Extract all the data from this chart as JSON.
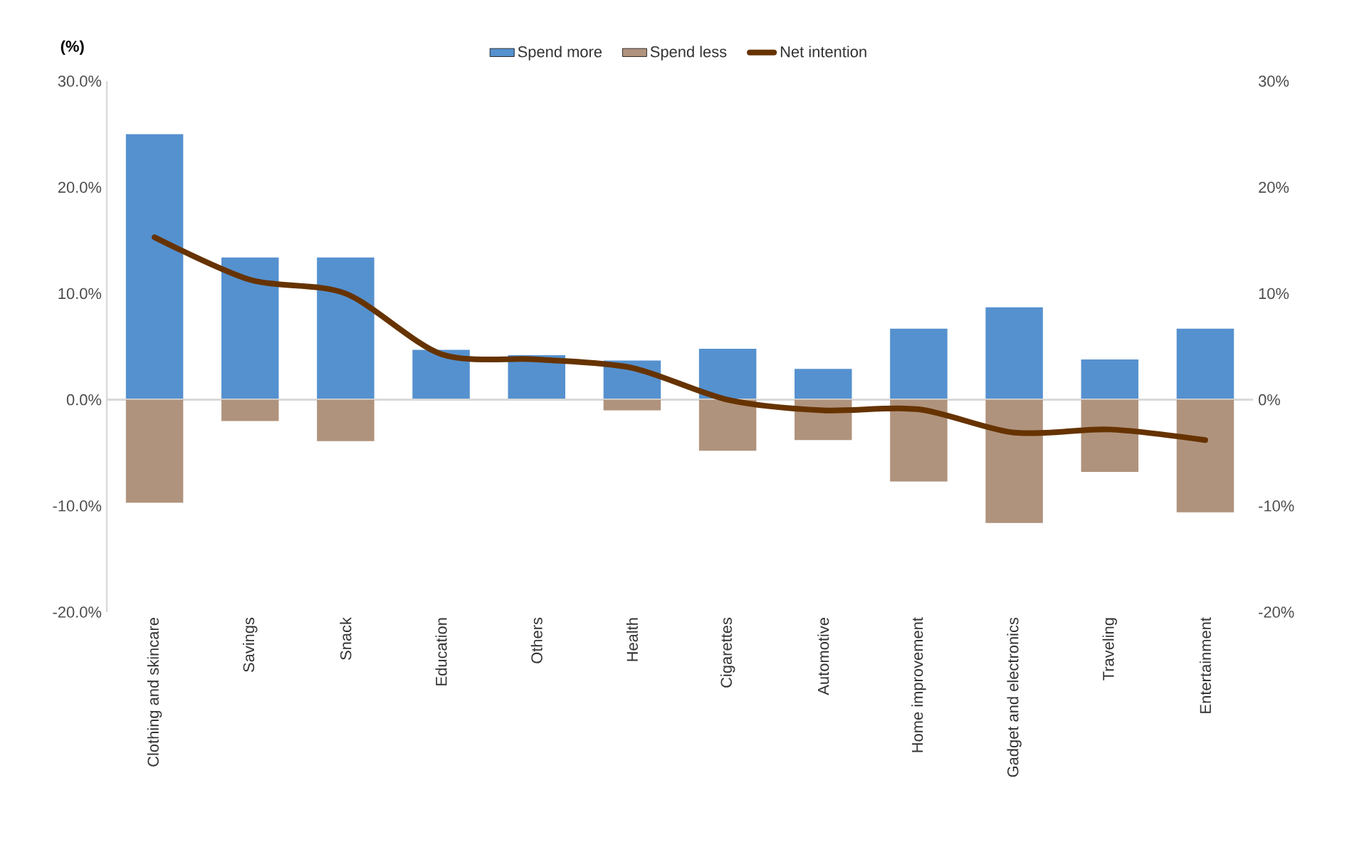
{
  "chart_data": {
    "type": "bar",
    "ylabel": "(%)",
    "categories": [
      "Clothing and skincare",
      "Savings",
      "Snack",
      "Education",
      "Others",
      "Health",
      "Cigarettes",
      "Automotive",
      "Home improvement",
      "Gadget and electronics",
      "Traveling",
      "Entertainment"
    ],
    "series": [
      {
        "name": "Spend more",
        "color": "#5591cf",
        "values": [
          25.0,
          13.4,
          13.4,
          4.7,
          4.2,
          3.7,
          4.8,
          2.9,
          6.7,
          8.7,
          3.8,
          6.7
        ]
      },
      {
        "name": "Spend less",
        "color": "#b0937d",
        "values": [
          -9.7,
          -2.0,
          -3.9,
          0,
          0,
          -1.0,
          -4.8,
          -3.8,
          -7.7,
          -11.6,
          -6.8,
          -10.6
        ]
      },
      {
        "name": "Net intention",
        "color": "#663300",
        "type": "line",
        "values": [
          15.3,
          11.3,
          10.0,
          4.3,
          3.8,
          3.0,
          0.0,
          -1.0,
          -0.9,
          -3.1,
          -2.8,
          -3.8
        ]
      }
    ],
    "ylim": [
      -20,
      30
    ],
    "yticks": [
      {
        "value": -20,
        "label": "-20.0%"
      },
      {
        "value": -10,
        "label": "-10.0%"
      },
      {
        "value": 0,
        "label": "0.0%"
      },
      {
        "value": 10,
        "label": "10.0%"
      },
      {
        "value": 20,
        "label": "20.0%"
      },
      {
        "value": 30,
        "label": "30.0%"
      }
    ],
    "y2lim": [
      -20,
      30
    ],
    "y2ticks": [
      {
        "value": -20,
        "label": "-20%"
      },
      {
        "value": -10,
        "label": "-10%"
      },
      {
        "value": 0,
        "label": "0%"
      },
      {
        "value": 10,
        "label": "10%"
      },
      {
        "value": 20,
        "label": "20%"
      },
      {
        "value": 30,
        "label": "30%"
      }
    ],
    "legend": "top",
    "stacked": true
  }
}
